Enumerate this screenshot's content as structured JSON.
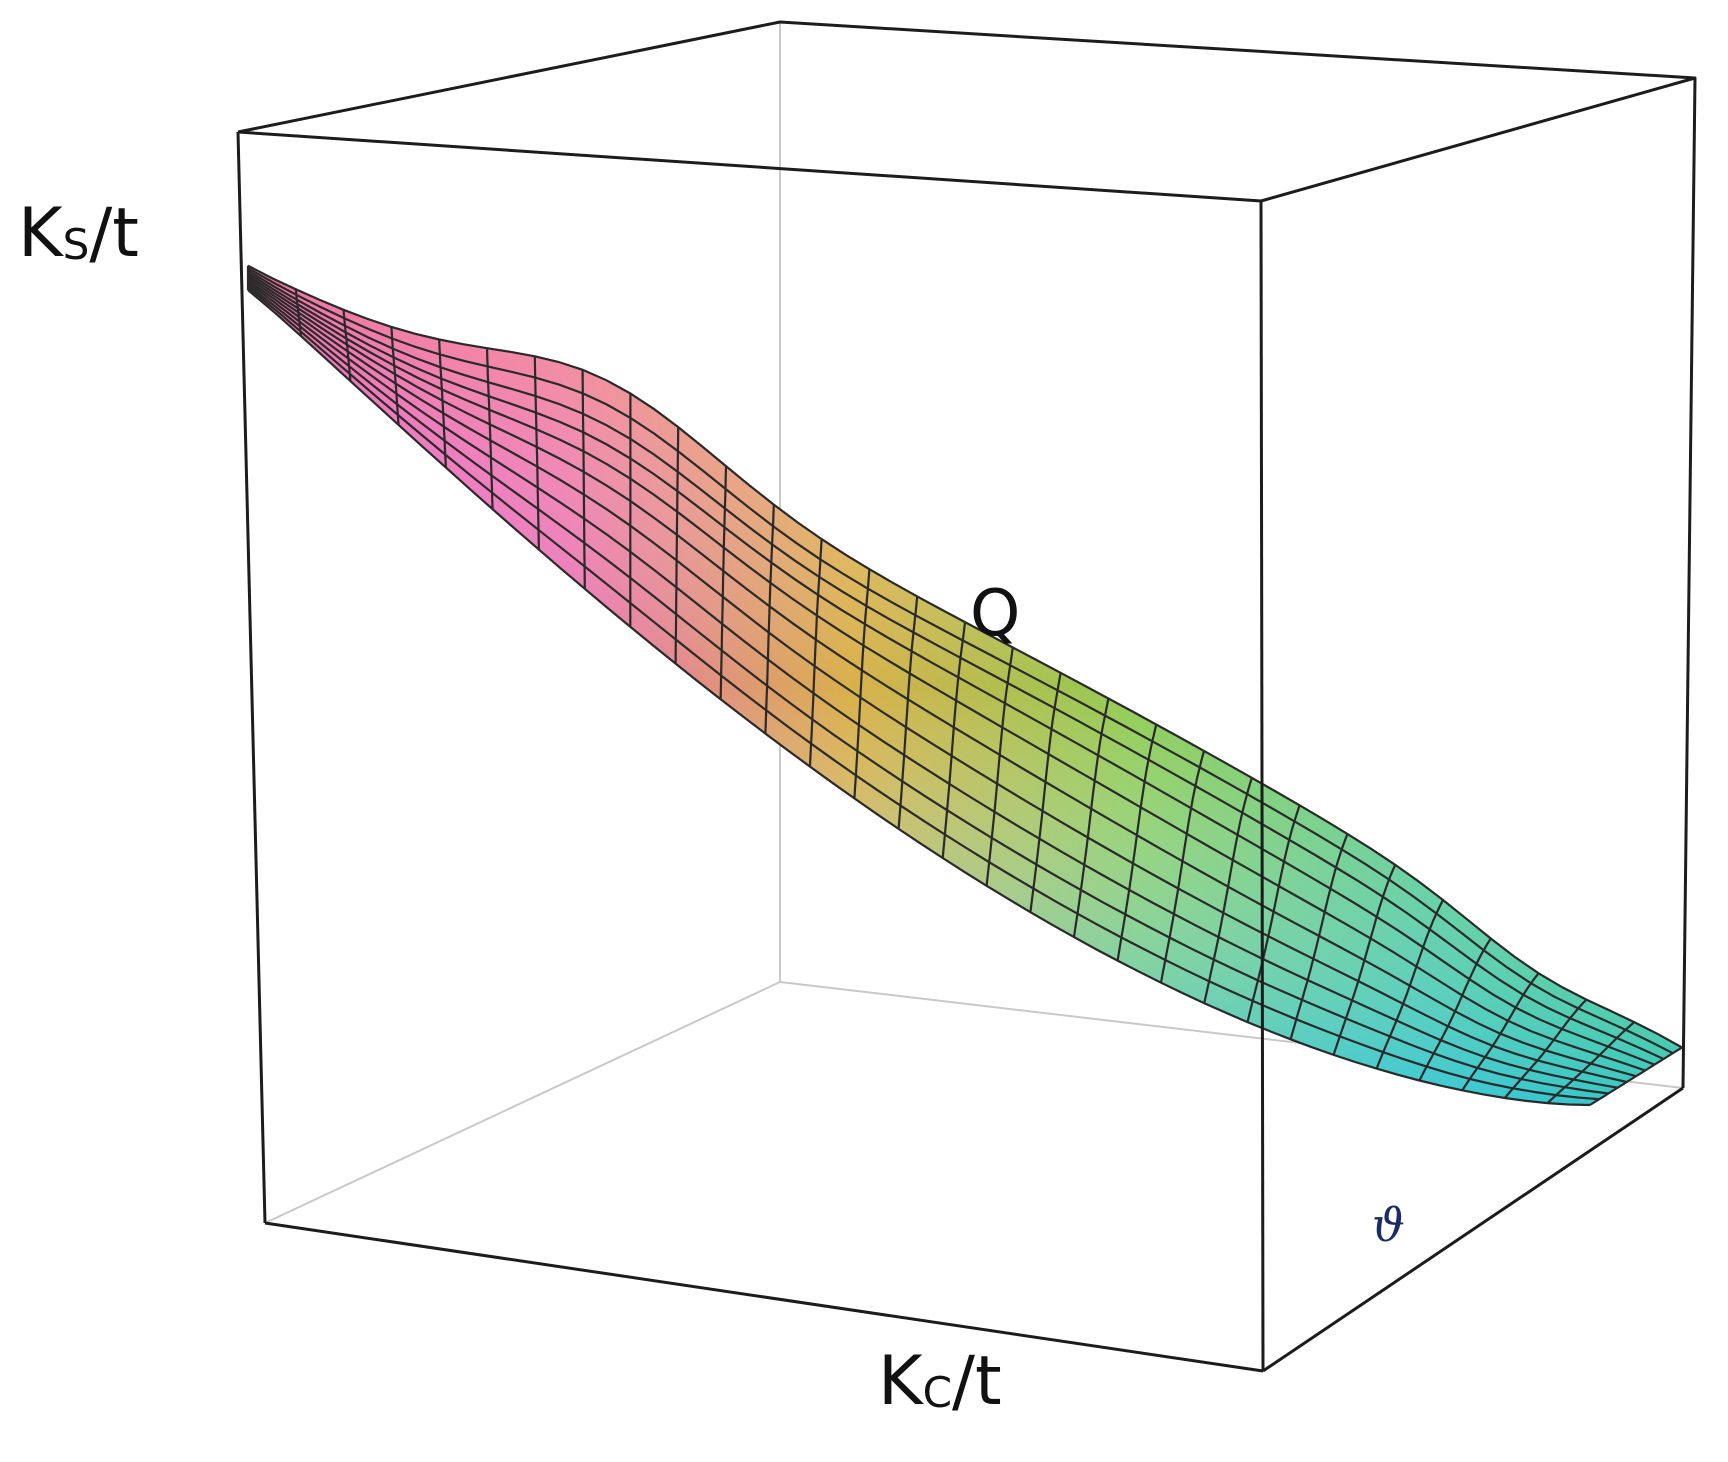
{
  "labels": {
    "ks_main": "K",
    "ks_sub": "S",
    "ks_tail": "/t",
    "kc_main": "K",
    "kc_sub": "C",
    "kc_tail": "/t",
    "q": "Q",
    "theta": "ϑ"
  },
  "plot": {
    "type": "3d-surface",
    "mesh_color": "#2a2a2a",
    "box_color": "#1c1c1c",
    "hidden_edge_color": "#c8c8c8",
    "colormap": [
      "#e040e8",
      "#f2a36a",
      "#d8d24a",
      "#59d08a",
      "#32c8ee",
      "#45c84a"
    ]
  }
}
